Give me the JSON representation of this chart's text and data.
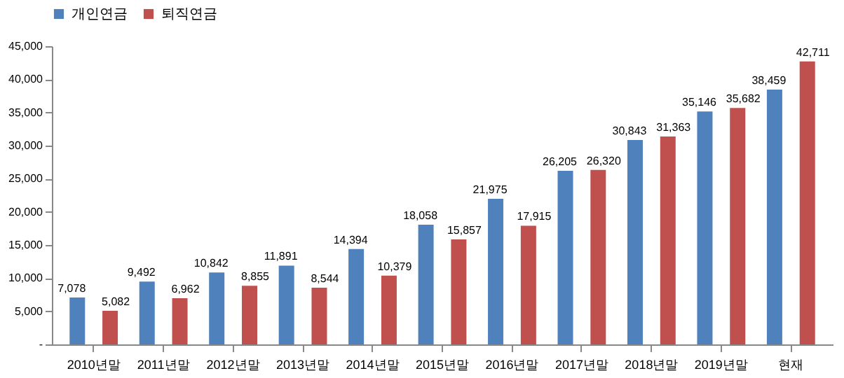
{
  "chart_data": {
    "type": "bar",
    "categories": [
      "2010년말",
      "2011년말",
      "2012년말",
      "2013년말",
      "2014년말",
      "2015년말",
      "2016년말",
      "2017년말",
      "2018년말",
      "2019년말",
      "현재"
    ],
    "series": [
      {
        "name": "개인연금",
        "color": "#4f81bd",
        "values": [
          7078,
          9492,
          10842,
          11891,
          14394,
          18058,
          21975,
          26205,
          30843,
          35146,
          38459
        ],
        "value_labels": [
          "7,078",
          "9,492",
          "10,842",
          "11,891",
          "14,394",
          "18,058",
          "21,975",
          "26,205",
          "30,843",
          "35,146",
          "38,459"
        ]
      },
      {
        "name": "퇴직연금",
        "color": "#c0504d",
        "values": [
          5082,
          6962,
          8855,
          8544,
          10379,
          15857,
          17915,
          26320,
          31363,
          35682,
          42711
        ],
        "value_labels": [
          "5,082",
          "6,962",
          "8,855",
          "8,544",
          "10,379",
          "15,857",
          "17,915",
          "26,320",
          "31,363",
          "35,682",
          "42,711"
        ]
      }
    ],
    "ylim": [
      0,
      45000
    ],
    "yticks": [
      {
        "value": 0,
        "label": "-"
      },
      {
        "value": 5000,
        "label": "5,000"
      },
      {
        "value": 10000,
        "label": "10,000"
      },
      {
        "value": 15000,
        "label": "15,000"
      },
      {
        "value": 20000,
        "label": "20,000"
      },
      {
        "value": 25000,
        "label": "25,000"
      },
      {
        "value": 30000,
        "label": "30,000"
      },
      {
        "value": 35000,
        "label": "35,000"
      },
      {
        "value": 40000,
        "label": "40,000"
      },
      {
        "value": 45000,
        "label": "45,000"
      }
    ],
    "grid": false,
    "legend": "top"
  }
}
